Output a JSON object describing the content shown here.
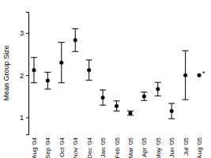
{
  "chart_data": {
    "type": "scatter",
    "y_label": "Mean Group Size",
    "categories": [
      "Aug '04",
      "Sep '04",
      "Oct '04",
      "Nov '04",
      "Dec '04",
      "Jan '05",
      "Feb '05",
      "Mar '05",
      "Apr '05",
      "May '05",
      "Jun '05",
      "Jul '05",
      "Aug '05"
    ],
    "values": [
      2.12,
      1.87,
      2.3,
      2.83,
      2.12,
      1.47,
      1.27,
      1.1,
      1.5,
      1.67,
      1.15,
      2.0,
      2.0
    ],
    "errors": [
      0.3,
      0.2,
      0.48,
      0.27,
      0.24,
      0.18,
      0.12,
      0.05,
      0.1,
      0.16,
      0.18,
      0.58,
      null
    ],
    "color": "#000000",
    "marker": "circle",
    "ylim": [
      0.6,
      3.5
    ],
    "yticks": [
      1,
      2,
      3
    ],
    "grid": false,
    "annotations": [
      {
        "text": "*",
        "x": "Aug '05",
        "y": 2.0
      }
    ]
  }
}
